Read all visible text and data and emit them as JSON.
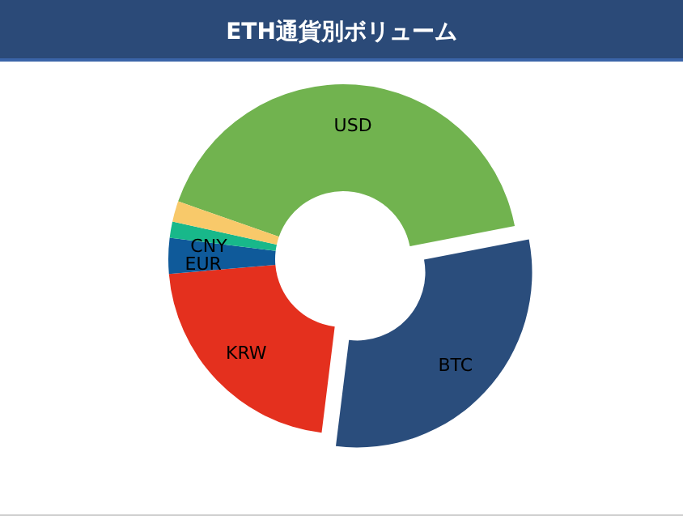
{
  "chart_data": {
    "type": "donut",
    "title": "ETH通貨別ボリューム",
    "categories": [
      "USD",
      "BTC",
      "KRW",
      "EUR",
      "CNY",
      null
    ],
    "values": [
      41.6,
      30,
      21.7,
      3.3,
      1.5,
      1.9
    ],
    "colors": [
      "#71b34f",
      "#2a4d7c",
      "#e4301e",
      "#0f5a9a",
      "#18b88a",
      "#f8c96a"
    ]
  }
}
